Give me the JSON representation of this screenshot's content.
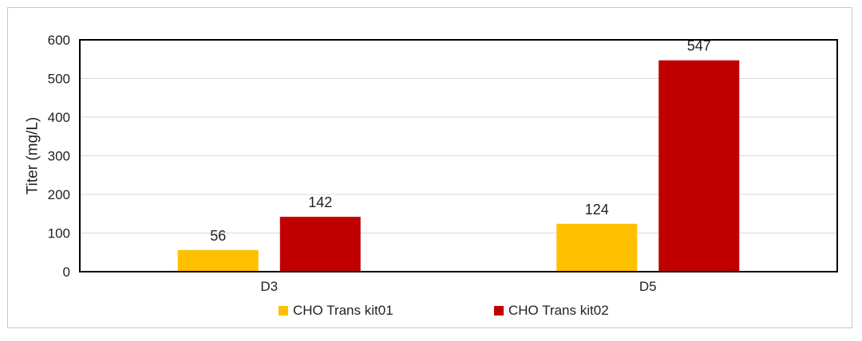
{
  "chart_data": {
    "type": "bar",
    "title": "",
    "xlabel": "",
    "ylabel": "Titer  (mg/L)",
    "categories": [
      "D3",
      "D5"
    ],
    "ylim": [
      0,
      600
    ],
    "yticks": [
      0,
      100,
      200,
      300,
      400,
      500,
      600
    ],
    "grid": true,
    "legend_position": "bottom",
    "series": [
      {
        "name": "CHO Trans kit01",
        "color": "#ffc000",
        "values": [
          56,
          124
        ]
      },
      {
        "name": "CHO Trans kit02",
        "color": "#c00000",
        "values": [
          142,
          547
        ]
      }
    ]
  }
}
